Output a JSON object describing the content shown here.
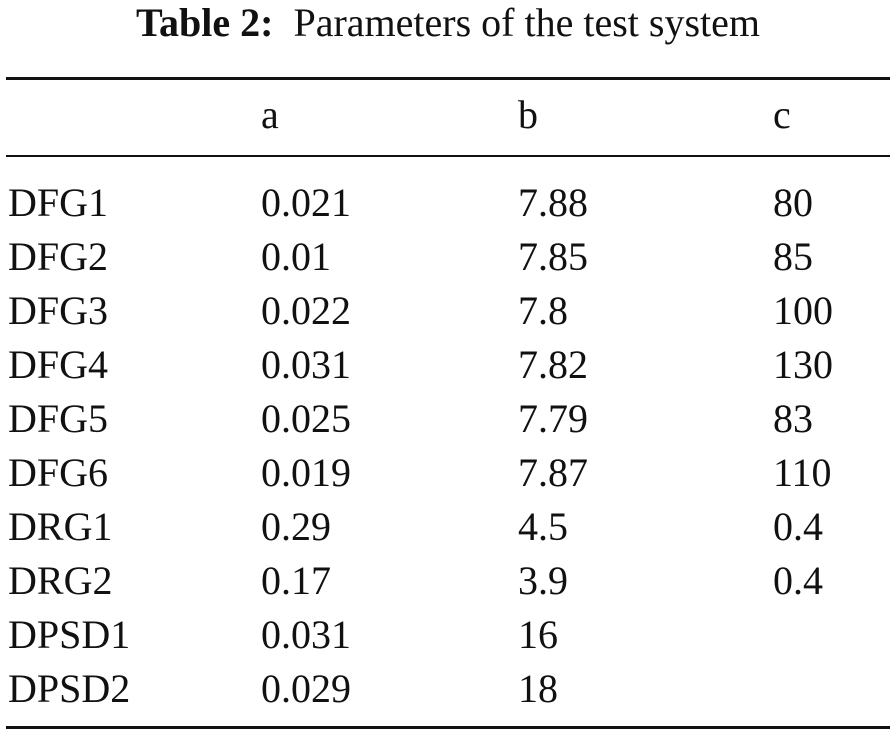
{
  "caption": {
    "label": "Table 2:",
    "text": "Parameters of the test system"
  },
  "table": {
    "headers": [
      "",
      "a",
      "b",
      "c"
    ],
    "rows": [
      [
        "DFG1",
        "0.021",
        "7.88",
        "80"
      ],
      [
        "DFG2",
        "0.01",
        "7.85",
        "85"
      ],
      [
        "DFG3",
        "0.022",
        "7.8",
        "100"
      ],
      [
        "DFG4",
        "0.031",
        "7.82",
        "130"
      ],
      [
        "DFG5",
        "0.025",
        "7.79",
        "83"
      ],
      [
        "DFG6",
        "0.019",
        "7.87",
        "110"
      ],
      [
        "DRG1",
        "0.29",
        "4.5",
        "0.4"
      ],
      [
        "DRG2",
        "0.17",
        "3.9",
        "0.4"
      ],
      [
        "DPSD1",
        "0.031",
        "16",
        ""
      ],
      [
        "DPSD2",
        "0.029",
        "18",
        ""
      ]
    ]
  }
}
